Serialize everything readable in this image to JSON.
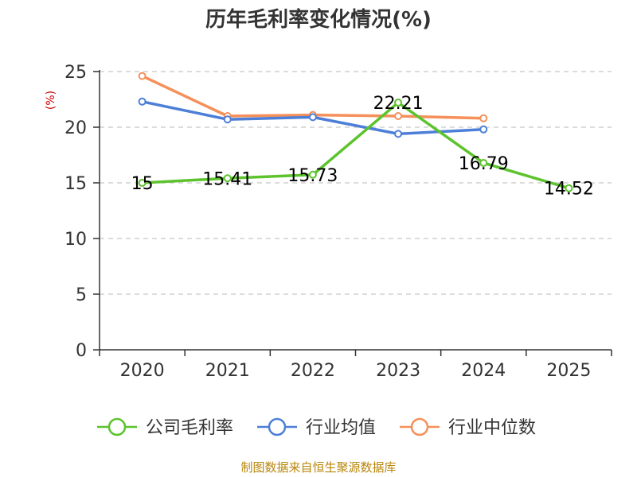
{
  "chart_data": {
    "type": "line",
    "title": "历年毛利率变化情况(%)",
    "ylabel": "(%)",
    "xlabel": "",
    "categories": [
      "2020",
      "2021",
      "2022",
      "2023",
      "2024",
      "2025"
    ],
    "ylim": [
      0,
      25
    ],
    "yticks": [
      0,
      5,
      10,
      15,
      20,
      25
    ],
    "grid": true,
    "legend_position": "bottom",
    "series": [
      {
        "name": "公司毛利率",
        "color": "#5cc32d",
        "values": [
          15,
          15.41,
          15.73,
          22.21,
          16.79,
          14.52
        ],
        "labels": [
          "15",
          "15.41",
          "15.73",
          "22.21",
          "16.79",
          "14.52"
        ]
      },
      {
        "name": "行业均值",
        "color": "#4d7fd8",
        "values": [
          22.3,
          20.7,
          20.9,
          19.4,
          19.8,
          null
        ]
      },
      {
        "name": "行业中位数",
        "color": "#f5905a",
        "values": [
          24.6,
          21.0,
          21.1,
          21.0,
          20.8,
          null
        ]
      }
    ],
    "source": "制图数据来自恒生聚源数据库"
  }
}
